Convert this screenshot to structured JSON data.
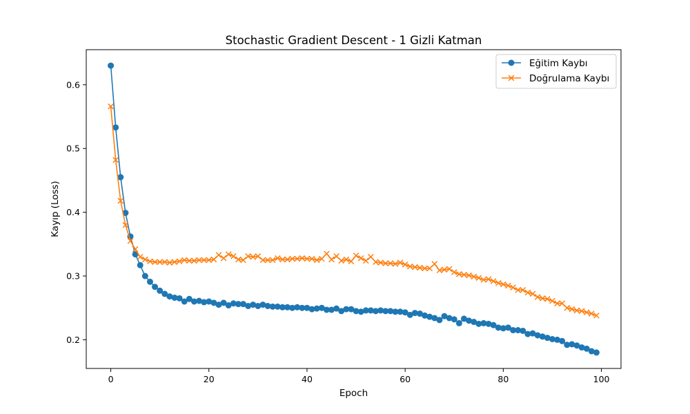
{
  "chart_data": {
    "type": "line",
    "title": "Stochastic Gradient Descent - 1 Gizli Katman",
    "xlabel": "Epoch",
    "ylabel": "Kayıp (Loss)",
    "xlim": [
      -5,
      104
    ],
    "ylim": [
      0.155,
      0.655
    ],
    "xticks": [
      0,
      20,
      40,
      60,
      80,
      100
    ],
    "yticks": [
      0.2,
      0.3,
      0.4,
      0.5,
      0.6
    ],
    "xtick_labels": [
      "0",
      "20",
      "40",
      "60",
      "80",
      "100"
    ],
    "ytick_labels": [
      "0.2",
      "0.3",
      "0.4",
      "0.5",
      "0.6"
    ],
    "grid": false,
    "legend_position": "upper right",
    "x": [
      0,
      1,
      2,
      3,
      4,
      5,
      6,
      7,
      8,
      9,
      10,
      11,
      12,
      13,
      14,
      15,
      16,
      17,
      18,
      19,
      20,
      21,
      22,
      23,
      24,
      25,
      26,
      27,
      28,
      29,
      30,
      31,
      32,
      33,
      34,
      35,
      36,
      37,
      38,
      39,
      40,
      41,
      42,
      43,
      44,
      45,
      46,
      47,
      48,
      49,
      50,
      51,
      52,
      53,
      54,
      55,
      56,
      57,
      58,
      59,
      60,
      61,
      62,
      63,
      64,
      65,
      66,
      67,
      68,
      69,
      70,
      71,
      72,
      73,
      74,
      75,
      76,
      77,
      78,
      79,
      80,
      81,
      82,
      83,
      84,
      85,
      86,
      87,
      88,
      89,
      90,
      91,
      92,
      93,
      94,
      95,
      96,
      97,
      98,
      99
    ],
    "series": [
      {
        "name": "Eğitim Kaybı",
        "color": "#1f77b4",
        "marker": "circle",
        "values": [
          0.63,
          0.533,
          0.455,
          0.399,
          0.362,
          0.334,
          0.317,
          0.3,
          0.291,
          0.283,
          0.277,
          0.272,
          0.268,
          0.266,
          0.265,
          0.26,
          0.264,
          0.26,
          0.261,
          0.259,
          0.26,
          0.258,
          0.255,
          0.258,
          0.254,
          0.257,
          0.256,
          0.256,
          0.253,
          0.255,
          0.253,
          0.255,
          0.253,
          0.252,
          0.252,
          0.251,
          0.251,
          0.25,
          0.251,
          0.25,
          0.25,
          0.248,
          0.249,
          0.25,
          0.247,
          0.247,
          0.249,
          0.245,
          0.248,
          0.248,
          0.245,
          0.244,
          0.246,
          0.246,
          0.245,
          0.246,
          0.245,
          0.245,
          0.244,
          0.244,
          0.243,
          0.239,
          0.242,
          0.241,
          0.238,
          0.236,
          0.234,
          0.231,
          0.237,
          0.234,
          0.232,
          0.226,
          0.233,
          0.23,
          0.228,
          0.225,
          0.226,
          0.225,
          0.223,
          0.219,
          0.218,
          0.219,
          0.215,
          0.215,
          0.214,
          0.209,
          0.21,
          0.207,
          0.205,
          0.203,
          0.201,
          0.2,
          0.198,
          0.192,
          0.193,
          0.191,
          0.188,
          0.186,
          0.182,
          0.18
        ]
      },
      {
        "name": "Doğrulama Kaybı",
        "color": "#ff7f0e",
        "marker": "x",
        "values": [
          0.566,
          0.482,
          0.418,
          0.38,
          0.355,
          0.342,
          0.33,
          0.326,
          0.323,
          0.322,
          0.322,
          0.322,
          0.321,
          0.322,
          0.323,
          0.325,
          0.324,
          0.324,
          0.325,
          0.325,
          0.325,
          0.326,
          0.333,
          0.328,
          0.334,
          0.331,
          0.326,
          0.325,
          0.331,
          0.33,
          0.331,
          0.325,
          0.325,
          0.325,
          0.328,
          0.326,
          0.326,
          0.327,
          0.327,
          0.328,
          0.327,
          0.327,
          0.325,
          0.327,
          0.335,
          0.326,
          0.331,
          0.324,
          0.326,
          0.323,
          0.332,
          0.328,
          0.324,
          0.33,
          0.322,
          0.321,
          0.32,
          0.32,
          0.319,
          0.321,
          0.318,
          0.315,
          0.314,
          0.313,
          0.312,
          0.312,
          0.319,
          0.309,
          0.31,
          0.311,
          0.306,
          0.303,
          0.302,
          0.301,
          0.299,
          0.297,
          0.294,
          0.295,
          0.292,
          0.289,
          0.287,
          0.285,
          0.282,
          0.278,
          0.278,
          0.274,
          0.272,
          0.267,
          0.265,
          0.264,
          0.261,
          0.257,
          0.257,
          0.25,
          0.248,
          0.246,
          0.245,
          0.243,
          0.241,
          0.238
        ]
      }
    ]
  }
}
